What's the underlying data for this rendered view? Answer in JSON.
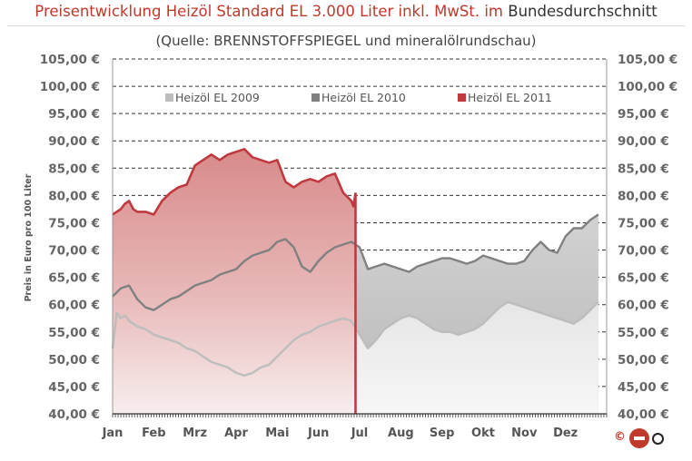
{
  "header": {
    "title_part1": "Preisentwicklung Heizöl Standard EL 3.000 Liter inkl. MwSt. im",
    "title_part2": "Bundesdurchschnitt",
    "subtitle": "(Quelle: BRENNSTOFFSPIEGEL  und mineralölrundschau)"
  },
  "chart_data": {
    "type": "area",
    "ylabel": "Preis in Euro pro 100 Liter",
    "ylim": [
      40,
      105
    ],
    "yticks": [
      "40,00 €",
      "45,00 €",
      "50,00 €",
      "55,00 €",
      "60,00 €",
      "65,00 €",
      "70,00 €",
      "75,00 €",
      "80,00 €",
      "85,00 €",
      "90,00 €",
      "95,00 €",
      "100,00 €",
      "105,00 €"
    ],
    "categories": [
      "Jan",
      "Feb",
      "Mrz",
      "Apr",
      "Mai",
      "Jun",
      "Jul",
      "Aug",
      "Sep",
      "Okt",
      "Nov",
      "Dez"
    ],
    "grid": true,
    "legend_position": "top",
    "series": [
      {
        "name": "Heizöl EL 2009",
        "color": "#bdbdbd",
        "x": [
          0,
          0.1,
          0.2,
          0.3,
          0.4,
          0.5,
          0.6,
          0.8,
          1.0,
          1.2,
          1.4,
          1.6,
          1.8,
          2.0,
          2.2,
          2.4,
          2.6,
          2.8,
          3.0,
          3.2,
          3.4,
          3.6,
          3.8,
          4.0,
          4.2,
          4.4,
          4.6,
          4.8,
          5.0,
          5.2,
          5.4,
          5.6,
          5.8,
          6.0,
          6.2,
          6.4,
          6.6,
          6.8,
          7.0,
          7.2,
          7.4,
          7.6,
          7.8,
          8.0,
          8.2,
          8.4,
          8.6,
          8.8,
          9.0,
          9.2,
          9.4,
          9.6,
          9.8,
          10.0,
          10.2,
          10.4,
          10.6,
          10.8,
          11.0,
          11.2,
          11.4,
          11.6,
          11.8
        ],
        "values": [
          52.0,
          58.5,
          57.5,
          58.0,
          57.0,
          56.5,
          56.0,
          55.5,
          54.5,
          54.0,
          53.5,
          53.0,
          52.0,
          51.5,
          50.5,
          49.5,
          49.0,
          48.5,
          47.5,
          47.0,
          47.5,
          48.5,
          49.0,
          50.5,
          52.0,
          53.5,
          54.5,
          55.0,
          56.0,
          56.5,
          57.0,
          57.5,
          57.0,
          54.5,
          52.0,
          53.5,
          55.5,
          56.5,
          57.5,
          58.0,
          57.5,
          56.5,
          55.5,
          55.0,
          55.0,
          54.5,
          55.0,
          55.5,
          56.5,
          58.0,
          59.5,
          60.5,
          60.0,
          59.5,
          59.0,
          58.5,
          58.0,
          57.5,
          57.0,
          56.5,
          57.5,
          59.0,
          60.5
        ]
      },
      {
        "name": "Heizöl EL 2010",
        "color": "#808080",
        "x": [
          0,
          0.2,
          0.4,
          0.6,
          0.8,
          1.0,
          1.2,
          1.4,
          1.6,
          1.8,
          2.0,
          2.2,
          2.4,
          2.6,
          2.8,
          3.0,
          3.2,
          3.4,
          3.6,
          3.8,
          4.0,
          4.2,
          4.4,
          4.6,
          4.8,
          5.0,
          5.2,
          5.4,
          5.6,
          5.8,
          6.0,
          6.2,
          6.4,
          6.6,
          6.8,
          7.0,
          7.2,
          7.4,
          7.6,
          7.8,
          8.0,
          8.2,
          8.4,
          8.6,
          8.8,
          9.0,
          9.2,
          9.4,
          9.6,
          9.8,
          10.0,
          10.2,
          10.4,
          10.6,
          10.8,
          11.0,
          11.2,
          11.4,
          11.6,
          11.8
        ],
        "values": [
          61.5,
          63.0,
          63.5,
          61.0,
          59.5,
          59.0,
          60.0,
          61.0,
          61.5,
          62.5,
          63.5,
          64.0,
          64.5,
          65.5,
          66.0,
          66.5,
          68.0,
          69.0,
          69.5,
          70.0,
          71.5,
          72.0,
          70.5,
          67.0,
          66.0,
          68.0,
          69.5,
          70.5,
          71.0,
          71.5,
          70.5,
          66.5,
          67.0,
          67.5,
          67.0,
          66.5,
          66.0,
          67.0,
          67.5,
          68.0,
          68.5,
          68.5,
          68.0,
          67.5,
          68.0,
          69.0,
          68.5,
          68.0,
          67.5,
          67.5,
          68.0,
          70.0,
          71.5,
          70.0,
          69.5,
          72.5,
          74.0,
          74.0,
          75.5,
          76.5
        ]
      },
      {
        "name": "Heizöl EL 2011",
        "color": "#c0393f",
        "x": [
          0,
          0.1,
          0.2,
          0.3,
          0.4,
          0.5,
          0.6,
          0.8,
          1.0,
          1.2,
          1.4,
          1.6,
          1.8,
          2.0,
          2.2,
          2.4,
          2.6,
          2.8,
          3.0,
          3.2,
          3.4,
          3.6,
          3.8,
          4.0,
          4.2,
          4.4,
          4.6,
          4.8,
          5.0,
          5.2,
          5.4,
          5.6,
          5.8,
          5.85,
          5.9
        ],
        "values": [
          76.5,
          77.0,
          77.5,
          78.5,
          79.0,
          77.5,
          77.0,
          77.0,
          76.5,
          79.0,
          80.5,
          81.5,
          82.0,
          85.5,
          86.5,
          87.5,
          86.5,
          87.5,
          88.0,
          88.5,
          87.0,
          86.5,
          86.0,
          86.5,
          82.5,
          81.5,
          82.5,
          83.0,
          82.5,
          83.5,
          84.0,
          80.5,
          79.0,
          78.0,
          80.5
        ]
      }
    ]
  },
  "logo": {
    "copyright": "©"
  }
}
